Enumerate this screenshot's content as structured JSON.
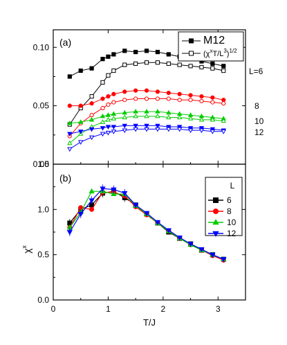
{
  "colors": {
    "black": "#000000",
    "red": "#ff0000",
    "green": "#00cc00",
    "blue": "#0000ff"
  },
  "chart_data": [
    {
      "type": "line",
      "panel_label": "(a)",
      "xlabel": "",
      "ylabel": "",
      "xlim": [
        0,
        3.5
      ],
      "ylim": [
        0,
        0.115
      ],
      "yticks": [
        "0.00",
        "0.05",
        "0.10"
      ],
      "ytick_values": [
        0.0,
        0.05,
        0.1
      ],
      "xtick_values": [
        0,
        1,
        2,
        3
      ],
      "legend": {
        "position": "top-right",
        "entries": [
          {
            "label": "M",
            "sup": "x",
            "marker": "square-filled"
          },
          {
            "label": "(χ",
            "sup": "x",
            "label2": "T/L",
            "sup2": "3",
            "label3": ")",
            "sup3": "1/2",
            "marker": "square-open"
          }
        ]
      },
      "L_labels": [
        "L=6",
        "8",
        "10",
        "12"
      ],
      "series": [
        {
          "L": 6,
          "kind": "M",
          "color": "#000000",
          "marker": "square",
          "filled": true,
          "x": [
            0.3,
            0.5,
            0.7,
            0.9,
            1.0,
            1.1,
            1.3,
            1.5,
            1.7,
            1.9,
            2.1,
            2.3,
            2.5,
            2.7,
            2.9,
            3.1
          ],
          "y": [
            0.075,
            0.08,
            0.082,
            0.09,
            0.092,
            0.094,
            0.097,
            0.096,
            0.097,
            0.096,
            0.094,
            0.092,
            0.09,
            0.088,
            0.086,
            0.084
          ]
        },
        {
          "L": 6,
          "kind": "chi",
          "color": "#000000",
          "marker": "square",
          "filled": false,
          "x": [
            0.3,
            0.5,
            0.7,
            0.9,
            1.0,
            1.1,
            1.3,
            1.5,
            1.7,
            1.9,
            2.1,
            2.3,
            2.5,
            2.7,
            2.9,
            3.1
          ],
          "y": [
            0.034,
            0.048,
            0.058,
            0.07,
            0.076,
            0.08,
            0.085,
            0.086,
            0.087,
            0.087,
            0.086,
            0.085,
            0.084,
            0.083,
            0.082,
            0.08
          ]
        },
        {
          "L": 8,
          "kind": "M",
          "color": "#ff0000",
          "marker": "circle",
          "filled": true,
          "x": [
            0.3,
            0.5,
            0.7,
            0.9,
            1.0,
            1.1,
            1.3,
            1.5,
            1.7,
            1.9,
            2.1,
            2.3,
            2.5,
            2.7,
            2.9,
            3.1
          ],
          "y": [
            0.05,
            0.05,
            0.052,
            0.056,
            0.058,
            0.06,
            0.062,
            0.063,
            0.063,
            0.062,
            0.061,
            0.06,
            0.059,
            0.058,
            0.057,
            0.055
          ]
        },
        {
          "L": 8,
          "kind": "chi",
          "color": "#ff0000",
          "marker": "circle",
          "filled": false,
          "x": [
            0.3,
            0.5,
            0.7,
            0.9,
            1.0,
            1.1,
            1.3,
            1.5,
            1.7,
            1.9,
            2.1,
            2.3,
            2.5,
            2.7,
            2.9,
            3.1
          ],
          "y": [
            0.024,
            0.035,
            0.042,
            0.048,
            0.051,
            0.053,
            0.055,
            0.056,
            0.056,
            0.056,
            0.056,
            0.055,
            0.055,
            0.054,
            0.053,
            0.052
          ]
        },
        {
          "L": 10,
          "kind": "M",
          "color": "#00cc00",
          "marker": "triangle-up",
          "filled": true,
          "x": [
            0.3,
            0.5,
            0.7,
            0.9,
            1.0,
            1.1,
            1.3,
            1.5,
            1.7,
            1.9,
            2.1,
            2.3,
            2.5,
            2.7,
            2.9,
            3.1
          ],
          "y": [
            0.035,
            0.036,
            0.038,
            0.041,
            0.042,
            0.043,
            0.044,
            0.045,
            0.045,
            0.045,
            0.044,
            0.043,
            0.042,
            0.041,
            0.04,
            0.039
          ]
        },
        {
          "L": 10,
          "kind": "chi",
          "color": "#00cc00",
          "marker": "triangle-up",
          "filled": false,
          "x": [
            0.3,
            0.5,
            0.7,
            0.9,
            1.0,
            1.1,
            1.3,
            1.5,
            1.7,
            1.9,
            2.1,
            2.3,
            2.5,
            2.7,
            2.9,
            3.1
          ],
          "y": [
            0.018,
            0.026,
            0.032,
            0.036,
            0.038,
            0.039,
            0.04,
            0.041,
            0.041,
            0.041,
            0.04,
            0.04,
            0.039,
            0.038,
            0.038,
            0.037
          ]
        },
        {
          "L": 12,
          "kind": "M",
          "color": "#0000ff",
          "marker": "triangle-down",
          "filled": true,
          "x": [
            0.3,
            0.5,
            0.7,
            0.9,
            1.0,
            1.1,
            1.3,
            1.5,
            1.7,
            1.9,
            2.1,
            2.3,
            2.5,
            2.7,
            2.9,
            3.1
          ],
          "y": [
            0.026,
            0.028,
            0.03,
            0.031,
            0.032,
            0.032,
            0.033,
            0.033,
            0.033,
            0.033,
            0.032,
            0.032,
            0.031,
            0.031,
            0.03,
            0.029
          ]
        },
        {
          "L": 12,
          "kind": "chi",
          "color": "#0000ff",
          "marker": "triangle-down",
          "filled": false,
          "x": [
            0.3,
            0.5,
            0.7,
            0.9,
            1.0,
            1.1,
            1.3,
            1.5,
            1.7,
            1.9,
            2.1,
            2.3,
            2.5,
            2.7,
            2.9,
            3.1
          ],
          "y": [
            0.013,
            0.019,
            0.023,
            0.026,
            0.027,
            0.028,
            0.029,
            0.03,
            0.03,
            0.03,
            0.03,
            0.03,
            0.029,
            0.029,
            0.028,
            0.028
          ]
        }
      ]
    },
    {
      "type": "line",
      "panel_label": "(b)",
      "xlabel": "T/J",
      "ylabel": "χ",
      "ylabel_sup": "x",
      "xlim": [
        0,
        3.5
      ],
      "ylim": [
        0,
        1.5
      ],
      "xticks": [
        "0",
        "1",
        "2",
        "3"
      ],
      "xtick_values": [
        0,
        1,
        2,
        3
      ],
      "yticks": [
        "0.0",
        "0.5",
        "1.0",
        "1.5"
      ],
      "ytick_values": [
        0.0,
        0.5,
        1.0,
        1.5
      ],
      "legend": {
        "position": "top-right",
        "title": "L",
        "entries": [
          "6",
          "8",
          "10",
          "12"
        ]
      },
      "series": [
        {
          "name": "6",
          "color": "#000000",
          "marker": "square",
          "x": [
            0.3,
            0.5,
            0.7,
            0.9,
            1.1,
            1.3,
            1.5,
            1.7,
            1.9,
            2.1,
            2.3,
            2.5,
            2.7,
            2.9,
            3.1
          ],
          "y": [
            0.85,
            1.0,
            1.05,
            1.18,
            1.2,
            1.13,
            1.05,
            0.95,
            0.85,
            0.75,
            0.68,
            0.62,
            0.55,
            0.5,
            0.45
          ]
        },
        {
          "name": "8",
          "color": "#ff0000",
          "marker": "circle",
          "x": [
            0.3,
            0.5,
            0.7,
            0.9,
            1.1,
            1.3,
            1.5,
            1.7,
            1.9,
            2.1,
            2.3,
            2.5,
            2.7,
            2.9,
            3.1
          ],
          "y": [
            0.8,
            1.02,
            1.0,
            1.19,
            1.19,
            1.15,
            1.03,
            0.94,
            0.85,
            0.76,
            0.68,
            0.61,
            0.55,
            0.49,
            0.44
          ]
        },
        {
          "name": "10",
          "color": "#00cc00",
          "marker": "triangle-up",
          "x": [
            0.3,
            0.5,
            0.7,
            0.9,
            1.1,
            1.3,
            1.5,
            1.7,
            1.9,
            2.1,
            2.3,
            2.5,
            2.7,
            2.9,
            3.1
          ],
          "y": [
            0.8,
            0.97,
            1.2,
            1.2,
            1.17,
            1.17,
            1.04,
            0.95,
            0.85,
            0.76,
            0.68,
            0.61,
            0.55,
            0.5,
            0.45
          ]
        },
        {
          "name": "12",
          "color": "#0000ff",
          "marker": "triangle-down",
          "x": [
            0.3,
            0.5,
            0.7,
            0.9,
            1.1,
            1.3,
            1.5,
            1.7,
            1.9,
            2.1,
            2.3,
            2.5,
            2.7,
            2.9,
            3.1
          ],
          "y": [
            0.75,
            0.95,
            1.1,
            1.23,
            1.22,
            1.18,
            1.05,
            0.96,
            0.86,
            0.77,
            0.69,
            0.62,
            0.56,
            0.5,
            0.45
          ]
        }
      ]
    }
  ]
}
